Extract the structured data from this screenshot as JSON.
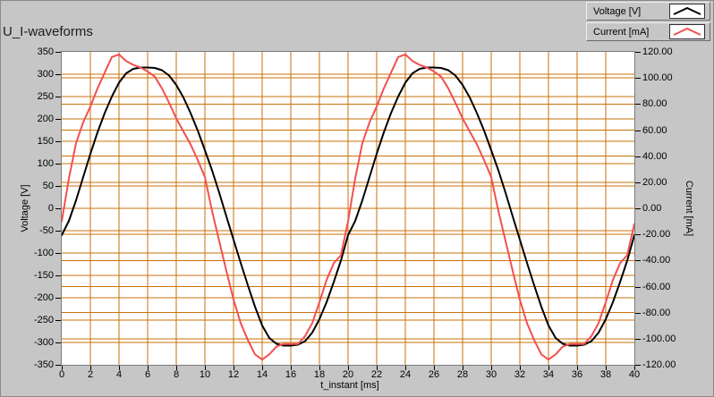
{
  "title": "U_I-waveforms",
  "legend": {
    "items": [
      {
        "label": "Voltage [V]",
        "color": "#000000"
      },
      {
        "label": "Current [mA]",
        "color": "#F25050"
      }
    ]
  },
  "chart_data": {
    "type": "line",
    "title": "U_I-waveforms",
    "xlabel": "t_instant [ms]",
    "x_min": 0,
    "x_max": 40,
    "x_ticks": [
      "0",
      "2",
      "4",
      "6",
      "8",
      "10",
      "12",
      "14",
      "16",
      "18",
      "20",
      "22",
      "24",
      "26",
      "28",
      "30",
      "32",
      "34",
      "36",
      "38",
      "40"
    ],
    "grid": true,
    "grid_color": "#C87208",
    "plot_bg": "#FFFFFF",
    "panel_bg": "#C6C6C6",
    "left_axis": {
      "label": "Voltage [V]",
      "min": -350,
      "max": 350,
      "tick_step": 50,
      "ticks": [
        "350",
        "300",
        "250",
        "200",
        "150",
        "100",
        "50",
        "0",
        "-50",
        "-100",
        "-150",
        "-200",
        "-250",
        "-300",
        "-350"
      ]
    },
    "right_axis": {
      "label": "Current [mA]",
      "min": -120,
      "max": 120,
      "tick_step": 20,
      "ticks": [
        "120.00",
        "100.00",
        "80.00",
        "60.00",
        "40.00",
        "20.00",
        "0.00",
        "-20.00",
        "-40.00",
        "-60.00",
        "-80.00",
        "-100.00",
        "-120.00"
      ]
    },
    "series": [
      {
        "name": "Voltage [V]",
        "axis": "left",
        "color": "#000000",
        "t0": 0,
        "dt": 0.5,
        "values": [
          -60,
          -28,
          18,
          70,
          122,
          170,
          213,
          250,
          281,
          302,
          312,
          315,
          315,
          314,
          309,
          297,
          276,
          248,
          213,
          174,
          130,
          85,
          35,
          -18,
          -70,
          -122,
          -172,
          -220,
          -262,
          -290,
          -303,
          -307,
          -307,
          -305,
          -297,
          -278,
          -248,
          -210,
          -165,
          -117,
          -60,
          -28,
          18,
          70,
          122,
          170,
          213,
          250,
          281,
          302,
          312,
          315,
          315,
          314,
          309,
          297,
          276,
          248,
          213,
          174,
          130,
          85,
          35,
          -18,
          -70,
          -122,
          -172,
          -220,
          -262,
          -290,
          -303,
          -307,
          -307,
          -305,
          -297,
          -278,
          -248,
          -210,
          -165,
          -117,
          -60
        ]
      },
      {
        "name": "Current [mA]",
        "axis": "right",
        "color": "#F25050",
        "t0": 0,
        "dt": 0.5,
        "values": [
          -10,
          23,
          50,
          66,
          78,
          92,
          104,
          116,
          118,
          113,
          110,
          108,
          105,
          101,
          92,
          81,
          69,
          59,
          49,
          37,
          24,
          -2,
          -25,
          -48,
          -70,
          -88,
          -101,
          -112,
          -116,
          -112,
          -106,
          -104,
          -104,
          -104,
          -98,
          -88,
          -72,
          -55,
          -42,
          -36,
          -10,
          23,
          50,
          66,
          78,
          92,
          104,
          116,
          118,
          113,
          110,
          108,
          105,
          101,
          92,
          81,
          69,
          59,
          49,
          37,
          24,
          -2,
          -25,
          -48,
          -70,
          -88,
          -101,
          -112,
          -116,
          -112,
          -106,
          -104,
          -104,
          -104,
          -98,
          -88,
          -72,
          -55,
          -42,
          -36,
          -12
        ]
      }
    ]
  }
}
